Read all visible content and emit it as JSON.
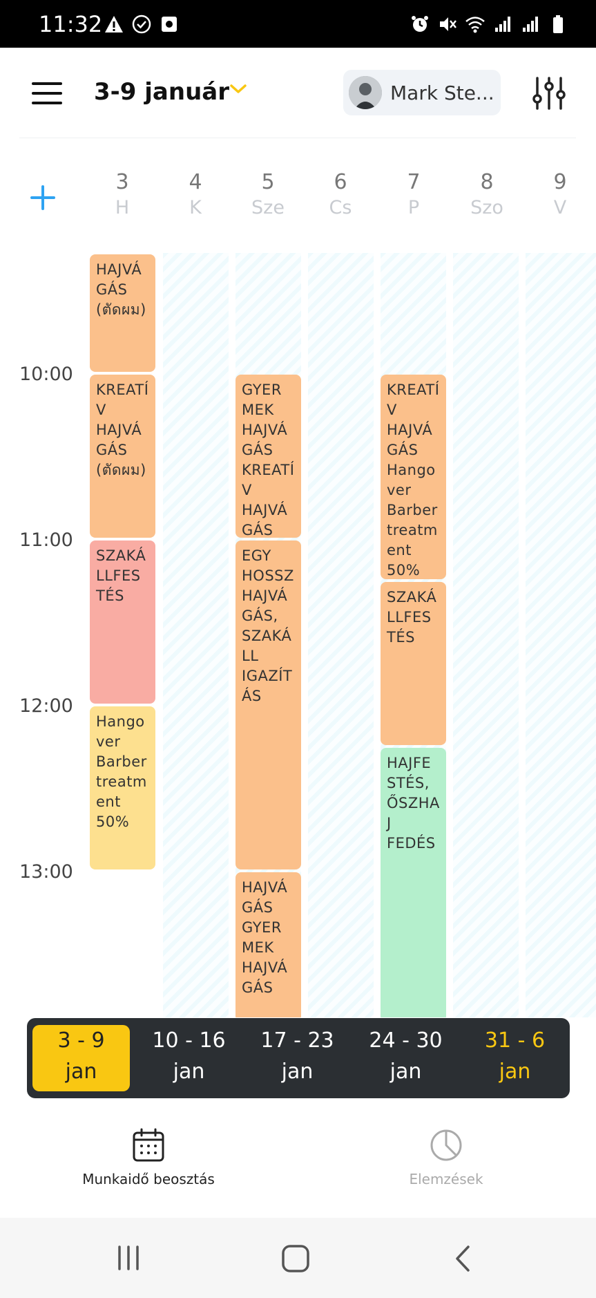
{
  "status_bar": {
    "time": "11:32",
    "left_icons": [
      "warning-icon",
      "check-circle-icon",
      "screen-record-icon"
    ],
    "right_icons": [
      "alarm-icon",
      "mute-icon",
      "wifi-icon",
      "signal-icon",
      "signal-roaming-icon",
      "battery-icon"
    ]
  },
  "header": {
    "week_title": "3-9 január",
    "user_name": "Mark Ste...",
    "accent_color": "#f9c712"
  },
  "days": [
    {
      "num": "3",
      "weekday": "H"
    },
    {
      "num": "4",
      "weekday": "K"
    },
    {
      "num": "5",
      "weekday": "Sze"
    },
    {
      "num": "6",
      "weekday": "Cs"
    },
    {
      "num": "7",
      "weekday": "P"
    },
    {
      "num": "8",
      "weekday": "Szo"
    },
    {
      "num": "9",
      "weekday": "V"
    }
  ],
  "hours": [
    "10:00",
    "11:00",
    "12:00",
    "13:00"
  ],
  "events": [
    {
      "day": "3",
      "start": "09:15",
      "end": "10:00",
      "color": "#fbc08b",
      "lines": [
        "HAJVÁ",
        "GÁS",
        "(ตัดผม)"
      ]
    },
    {
      "day": "3",
      "start": "10:00",
      "end": "11:00",
      "color": "#fbc08b",
      "lines": [
        "KREATÍ",
        "V",
        "HAJVÁ",
        "GÁS",
        "(ตัดผม)"
      ]
    },
    {
      "day": "3",
      "start": "11:00",
      "end": "12:00",
      "color": "#f9aca3",
      "lines": [
        "SZAKÁ",
        "LLFES",
        "TÉS"
      ]
    },
    {
      "day": "3",
      "start": "12:00",
      "end": "13:00",
      "color": "#fde08f",
      "lines": [
        "Hango",
        "ver",
        "Barber",
        "treatm",
        "ent",
        "50%"
      ]
    },
    {
      "day": "5",
      "start": "10:00",
      "end": "11:00",
      "color": "#fbc08b",
      "lines": [
        "GYER",
        "MEK",
        "HAJVÁ",
        "GÁS",
        "KREATÍ",
        "V",
        "HAJVÁ",
        "GÁS"
      ]
    },
    {
      "day": "5",
      "start": "11:00",
      "end": "13:00",
      "color": "#fbc08b",
      "lines": [
        "EGY",
        "HOSSZ",
        "HAJVÁ",
        "GÁS,",
        "SZAKÁ",
        "LL",
        "IGAZÍT",
        "ÁS"
      ]
    },
    {
      "day": "5",
      "start": "13:00",
      "end": "13:55",
      "color": "#fbc08b",
      "lines": [
        "HAJVÁ",
        "GÁS",
        "GYER",
        "MEK",
        "HAJVÁ",
        "GÁS"
      ]
    },
    {
      "day": "7",
      "start": "10:00",
      "end": "11:15",
      "color": "#fbc08b",
      "lines": [
        "KREATÍ",
        "V",
        "HAJVÁ",
        "GÁS",
        "Hango",
        "ver",
        "Barber",
        "treatm",
        "ent",
        "50%"
      ]
    },
    {
      "day": "7",
      "start": "11:15",
      "end": "12:15",
      "color": "#fbc08b",
      "lines": [
        "SZAKÁ",
        "LLFES",
        "TÉS"
      ]
    },
    {
      "day": "7",
      "start": "12:15",
      "end": "13:55",
      "color": "#b4efcc",
      "lines": [
        "HAJFE",
        "STÉS,",
        "ŐSZHA",
        "J",
        "FEDÉS"
      ]
    }
  ],
  "weeks": [
    {
      "range": "3 - 9",
      "month": "jan",
      "state": "active"
    },
    {
      "range": "10 - 16",
      "month": "jan",
      "state": "normal"
    },
    {
      "range": "17 - 23",
      "month": "jan",
      "state": "normal"
    },
    {
      "range": "24 - 30",
      "month": "jan",
      "state": "normal"
    },
    {
      "range": "31 - 6",
      "month": "jan",
      "state": "accent"
    }
  ],
  "bottom_nav": {
    "schedule_label": "Munkaidő beosztás",
    "analytics_label": "Elemzések"
  },
  "system_nav": [
    "recent-apps-icon",
    "home-icon",
    "back-icon"
  ]
}
